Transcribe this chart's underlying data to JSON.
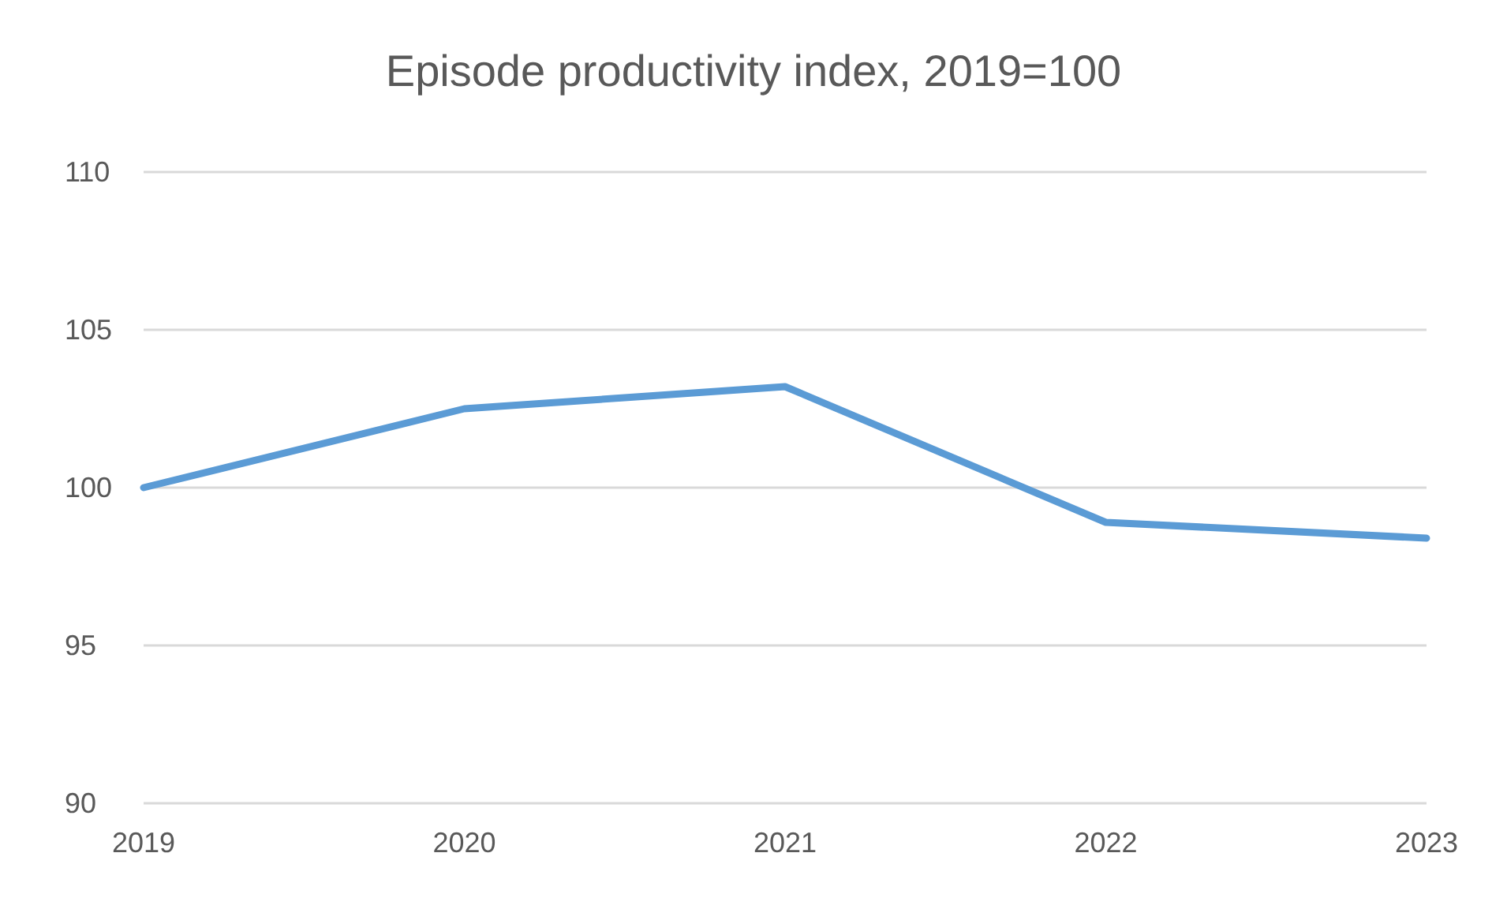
{
  "chart_data": {
    "type": "line",
    "title": "Episode productivity index, 2019=100",
    "categories": [
      "2019",
      "2020",
      "2021",
      "2022",
      "2023"
    ],
    "series": [
      {
        "color": "#5b9bd5",
        "values": [
          100,
          102.5,
          103.2,
          98.9,
          98.4
        ]
      }
    ],
    "ylim": [
      90,
      110
    ],
    "yticks": [
      90,
      95,
      100,
      105,
      110
    ],
    "grid": "y",
    "marker": "none",
    "line_style": "solid"
  }
}
